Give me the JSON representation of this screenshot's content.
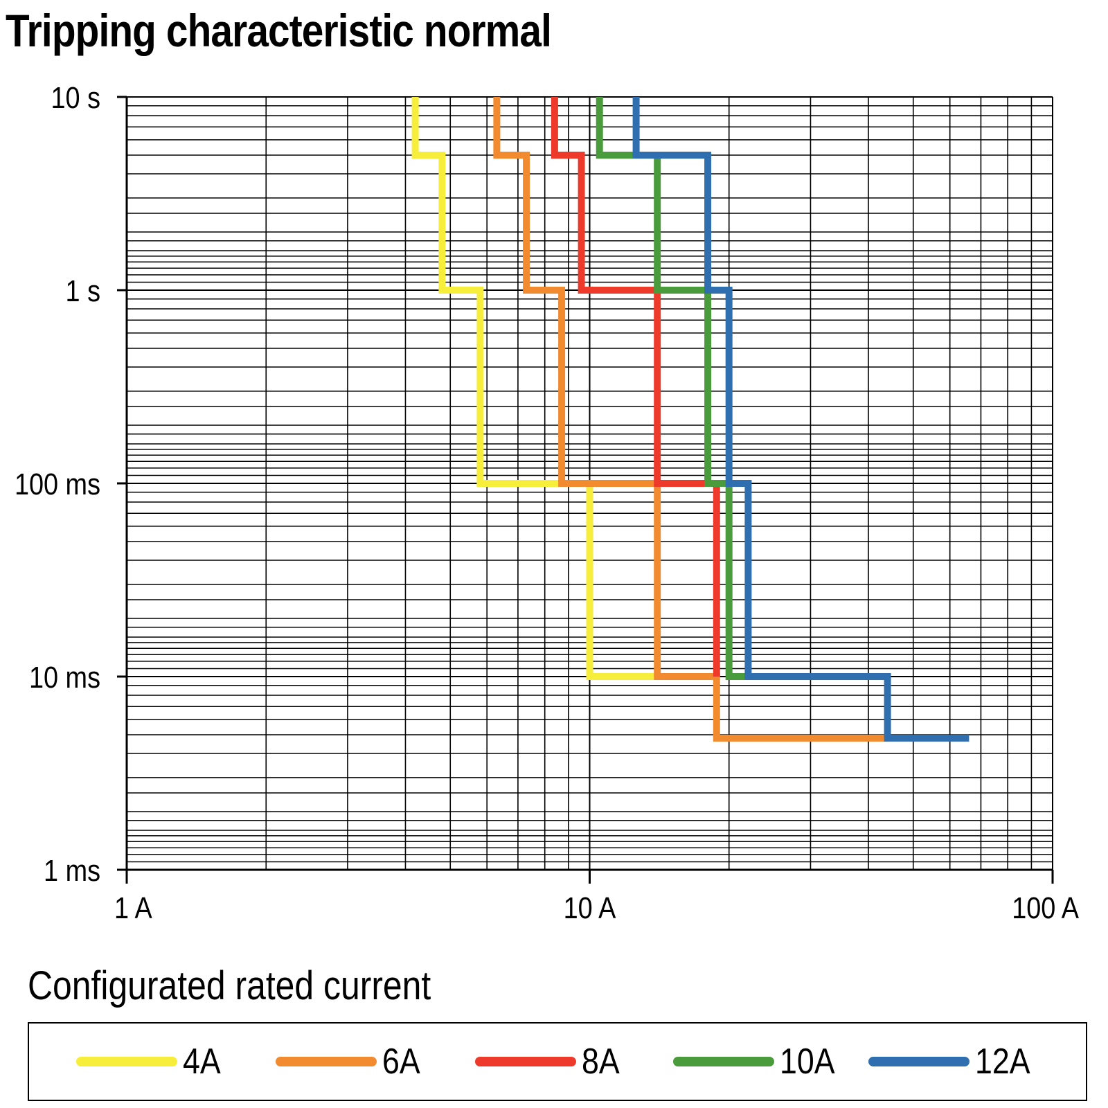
{
  "chart_data": {
    "type": "line",
    "title": "Tripping characteristic normal",
    "xscale": "log",
    "yscale": "log",
    "xlim": [
      1,
      100
    ],
    "ylim": [
      0.001,
      10
    ],
    "grid": true,
    "x_ticks": [
      {
        "value": 1,
        "label": "1 A"
      },
      {
        "value": 10,
        "label": "10 A"
      },
      {
        "value": 100,
        "label": "100 A"
      }
    ],
    "y_ticks": [
      {
        "value": 10,
        "label": "10 s"
      },
      {
        "value": 1,
        "label": "1 s"
      },
      {
        "value": 0.1,
        "label": "100 ms"
      },
      {
        "value": 0.01,
        "label": "10 ms"
      },
      {
        "value": 0.001,
        "label": "1 ms"
      }
    ],
    "legend_title": "Configurated rated current",
    "legend_position": "bottom",
    "series": [
      {
        "name": "4A",
        "color": "#f7ee3b",
        "points": [
          [
            4.2,
            10
          ],
          [
            4.2,
            5
          ],
          [
            4.8,
            5
          ],
          [
            4.8,
            1
          ],
          [
            5.8,
            1
          ],
          [
            5.8,
            0.1
          ],
          [
            10,
            0.1
          ],
          [
            10,
            0.01
          ],
          [
            14,
            0.01
          ]
        ]
      },
      {
        "name": "6A",
        "color": "#f28a30",
        "points": [
          [
            6.3,
            10
          ],
          [
            6.3,
            5
          ],
          [
            7.3,
            5
          ],
          [
            7.3,
            1
          ],
          [
            8.7,
            1
          ],
          [
            8.7,
            0.1
          ],
          [
            14,
            0.1
          ],
          [
            14,
            0.01
          ],
          [
            18.8,
            0.01
          ],
          [
            18.8,
            0.0048
          ],
          [
            44,
            0.0048
          ]
        ]
      },
      {
        "name": "8A",
        "color": "#ee3a2b",
        "points": [
          [
            8.4,
            10
          ],
          [
            8.4,
            5
          ],
          [
            9.6,
            5
          ],
          [
            9.6,
            1
          ],
          [
            14,
            1
          ],
          [
            14,
            0.1
          ],
          [
            18.8,
            0.1
          ],
          [
            18.8,
            0.01
          ]
        ]
      },
      {
        "name": "10A",
        "color": "#4a9b3b",
        "points": [
          [
            10.5,
            10
          ],
          [
            10.5,
            5
          ],
          [
            14,
            5
          ],
          [
            14,
            1
          ],
          [
            18,
            1
          ],
          [
            18,
            0.1
          ],
          [
            20,
            0.1
          ],
          [
            20,
            0.01
          ],
          [
            22,
            0.01
          ]
        ]
      },
      {
        "name": "12A",
        "color": "#2f6fb0",
        "points": [
          [
            12.6,
            10
          ],
          [
            12.6,
            5
          ],
          [
            18,
            5
          ],
          [
            18,
            1
          ],
          [
            20,
            1
          ],
          [
            20,
            0.1
          ],
          [
            22,
            0.1
          ],
          [
            22,
            0.01
          ],
          [
            44,
            0.01
          ],
          [
            44,
            0.0048
          ],
          [
            66,
            0.0048
          ]
        ]
      }
    ]
  }
}
